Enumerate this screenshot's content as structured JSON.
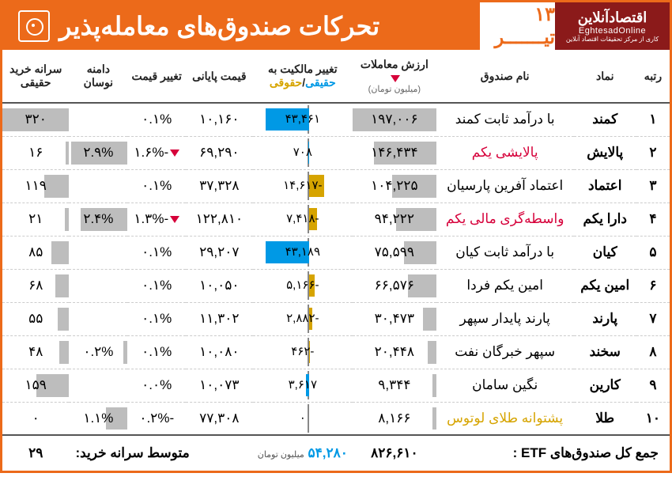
{
  "header": {
    "logo_fa": "اقتصادآنلاین",
    "logo_en": "EghtesadOnline",
    "logo_sub": "کاری از مرکز تحقیقات اقتصاد آنلاین",
    "date": "۱۳ تیـــــــر",
    "title": "تحرکات صندوق‌های معامله‌پذیر"
  },
  "columns": {
    "rank": "رتبه",
    "symbol": "نماد",
    "name": "نام صندوق",
    "trade_val": "ارزش معاملات",
    "trade_val_sub": "(میلیون تومان)",
    "ownership": "تغییر مالکیت به",
    "ownership_ha": "حقیقی",
    "ownership_ho": "حقوقی",
    "close": "قیمت پایانی",
    "change": "تغییر قیمت",
    "range": "دامنه نوسان",
    "percap": "سرانه خرید حقیقی"
  },
  "colors": {
    "pos_bar": "#0099e5",
    "neg_bar": "#d6a400",
    "gray_bar": "#bdbdbd",
    "red": "#d6003a",
    "orange": "#ec6a1a"
  },
  "ownership_max_abs": 43461,
  "trade_max": 197006,
  "percap_max": 320,
  "rows": [
    {
      "rank": "۱",
      "symbol": "کمند",
      "name": "با درآمد ثابت کمند",
      "name_cls": "",
      "trade": "۱۹۷,۰۰۶",
      "trade_v": 197006,
      "own": "۴۳,۴۶۱",
      "own_v": 43461,
      "close": "۱۰,۱۶۰",
      "chg": "۰.۱%",
      "chg_dn": false,
      "range": "",
      "range_v": 0,
      "percap": "۳۲۰",
      "percap_v": 320
    },
    {
      "rank": "۲",
      "symbol": "پالایش",
      "name": "پالایشی یکم",
      "name_cls": "red-text",
      "trade": "۱۴۶,۴۳۴",
      "trade_v": 146434,
      "own": "۷۰۸",
      "own_v": 708,
      "close": "۶۹,۲۹۰",
      "chg": "-۱.۶%",
      "chg_dn": true,
      "range": "۲.۹%",
      "range_v": 2.9,
      "percap": "۱۶",
      "percap_v": 16
    },
    {
      "rank": "۳",
      "symbol": "اعتماد",
      "name": "اعتماد آفرین پارسیان",
      "name_cls": "",
      "trade": "۱۰۴,۲۲۵",
      "trade_v": 104225,
      "own": "-۱۴,۶۱۷",
      "own_v": -14617,
      "close": "۳۷,۳۲۸",
      "chg": "۰.۱%",
      "chg_dn": false,
      "range": "",
      "range_v": 0,
      "percap": "۱۱۹",
      "percap_v": 119
    },
    {
      "rank": "۴",
      "symbol": "دارا یکم",
      "name": "واسطه‌گری مالی یکم",
      "name_cls": "red-text",
      "trade": "۹۴,۲۲۲",
      "trade_v": 94222,
      "own": "-۷,۴۱۸",
      "own_v": -7418,
      "close": "۱۲۲,۸۱۰",
      "chg": "-۱.۳%",
      "chg_dn": true,
      "range": "۲.۴%",
      "range_v": 2.4,
      "percap": "۲۱",
      "percap_v": 21
    },
    {
      "rank": "۵",
      "symbol": "کیان",
      "name": "با درآمد ثابت کیان",
      "name_cls": "",
      "trade": "۷۵,۵۹۹",
      "trade_v": 75599,
      "own": "۴۳,۱۸۹",
      "own_v": 43189,
      "close": "۲۹,۲۰۷",
      "chg": "۰.۱%",
      "chg_dn": false,
      "range": "",
      "range_v": 0,
      "percap": "۸۵",
      "percap_v": 85
    },
    {
      "rank": "۶",
      "symbol": "امین یکم",
      "name": "امین یکم فردا",
      "name_cls": "",
      "trade": "۶۶,۵۷۶",
      "trade_v": 66576,
      "own": "-۵,۱۶۶",
      "own_v": -5166,
      "close": "۱۰,۰۵۰",
      "chg": "۰.۱%",
      "chg_dn": false,
      "range": "",
      "range_v": 0,
      "percap": "۶۸",
      "percap_v": 68
    },
    {
      "rank": "۷",
      "symbol": "پارند",
      "name": "پارند پایدار سپهر",
      "name_cls": "",
      "trade": "۳۰,۴۷۳",
      "trade_v": 30473,
      "own": "-۲,۸۸۲",
      "own_v": -2882,
      "close": "۱۱,۳۰۲",
      "chg": "۰.۱%",
      "chg_dn": false,
      "range": "",
      "range_v": 0,
      "percap": "۵۵",
      "percap_v": 55
    },
    {
      "rank": "۸",
      "symbol": "سخند",
      "name": "سپهر خبرگان نفت",
      "name_cls": "",
      "trade": "۲۰,۴۴۸",
      "trade_v": 20448,
      "own": "-۴۶۲",
      "own_v": -462,
      "close": "۱۰,۰۸۰",
      "chg": "۰.۱%",
      "chg_dn": false,
      "range": "۰.۲%",
      "range_v": 0.2,
      "percap": "۴۸",
      "percap_v": 48
    },
    {
      "rank": "۹",
      "symbol": "کارین",
      "name": "نگین سامان",
      "name_cls": "",
      "trade": "۹,۳۴۴",
      "trade_v": 9344,
      "own": "۳,۶۱۷",
      "own_v": 3617,
      "close": "۱۰,۰۷۳",
      "chg": "۰.۰%",
      "chg_dn": false,
      "range": "",
      "range_v": 0,
      "percap": "۱۵۹",
      "percap_v": 159
    },
    {
      "rank": "۱۰",
      "symbol": "طلا",
      "name": "پشتوانه طلای لوتوس",
      "name_cls": "gold-text",
      "trade": "۸,۱۶۶",
      "trade_v": 8166,
      "own": "۰",
      "own_v": 0,
      "close": "۷۷,۳۰۸",
      "chg": "-۰.۲%",
      "chg_dn": false,
      "range": "۱.۱%",
      "range_v": 1.1,
      "percap": "۰",
      "percap_v": 0
    }
  ],
  "totals": {
    "label": "جمع کل صندوق‌های ETF :",
    "trade_sum": "۸۲۶,۶۱۰",
    "own_sum": "۵۴,۲۸۰",
    "own_unit": "میلیون تومان",
    "percap_label": "متوسط سرانه خرید:",
    "percap_avg": "۲۹"
  }
}
